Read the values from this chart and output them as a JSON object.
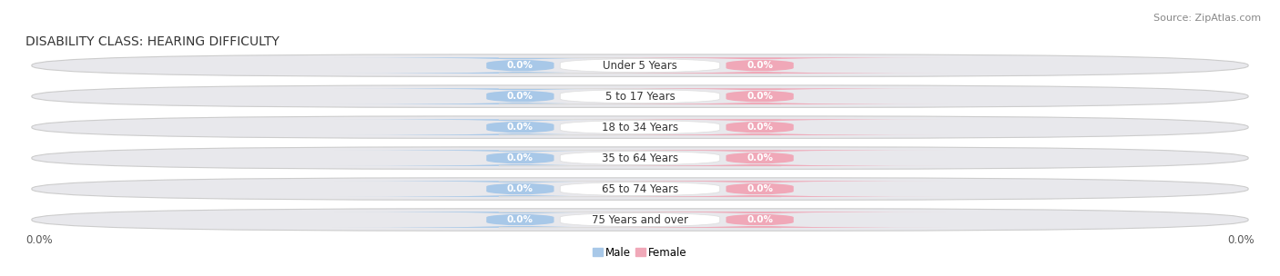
{
  "title": "DISABILITY CLASS: HEARING DIFFICULTY",
  "source": "Source: ZipAtlas.com",
  "categories": [
    "Under 5 Years",
    "5 to 17 Years",
    "18 to 34 Years",
    "35 to 64 Years",
    "65 to 74 Years",
    "75 Years and over"
  ],
  "male_values": [
    0.0,
    0.0,
    0.0,
    0.0,
    0.0,
    0.0
  ],
  "female_values": [
    0.0,
    0.0,
    0.0,
    0.0,
    0.0,
    0.0
  ],
  "male_color": "#a8c8e8",
  "female_color": "#f0a8b8",
  "male_label_color": "#ffffff",
  "female_label_color": "#ffffff",
  "row_bg_color": "#e8e8ec",
  "row_edge_color": "#cccccc",
  "cat_box_color": "#ffffff",
  "cat_text_color": "#333333",
  "label_male": "Male",
  "label_female": "Female",
  "x_left_label": "0.0%",
  "x_right_label": "0.0%",
  "title_fontsize": 10,
  "source_fontsize": 8,
  "category_fontsize": 8.5,
  "value_fontsize": 7.5,
  "axis_label_fontsize": 8.5
}
